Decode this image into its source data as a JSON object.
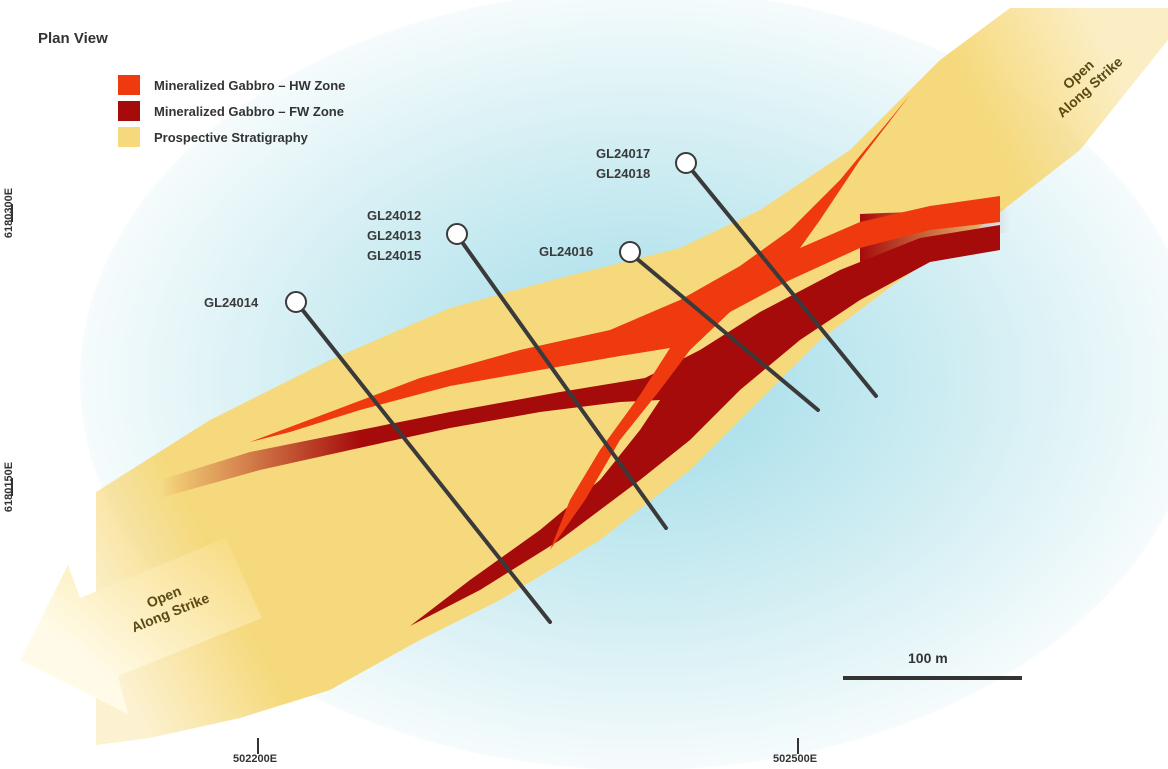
{
  "map": {
    "title": "Plan View",
    "legend": [
      {
        "label": "Mineralized Gabbro – HW Zone",
        "color": "#ee3a0e"
      },
      {
        "label": "Mineralized Gabbro – FW Zone",
        "color": "#a60b0b"
      },
      {
        "label": "Prospective Stratigraphy",
        "color": "#f6d97c"
      }
    ],
    "drillholes": [
      {
        "labels": [
          "GL24014"
        ]
      },
      {
        "labels": [
          "GL24012",
          "GL24013",
          "GL24015"
        ]
      },
      {
        "labels": [
          "GL24016"
        ]
      },
      {
        "labels": [
          "GL24017",
          "GL24018"
        ]
      }
    ],
    "y_axis": {
      "ticks": [
        "6180300E",
        "6180150E"
      ]
    },
    "x_axis": {
      "ticks": [
        "502200E",
        "502500E"
      ]
    },
    "scale_bar": {
      "label": "100 m"
    },
    "open_labels": [
      {
        "line1": "Open",
        "line2": "Along Strike"
      },
      {
        "line1": "Open",
        "line2": "Along Strike"
      }
    ],
    "colors": {
      "background_glow": "#bfe6ee",
      "drill_trace": "#3a3a3a",
      "collar_fill": "#ffffff"
    }
  }
}
